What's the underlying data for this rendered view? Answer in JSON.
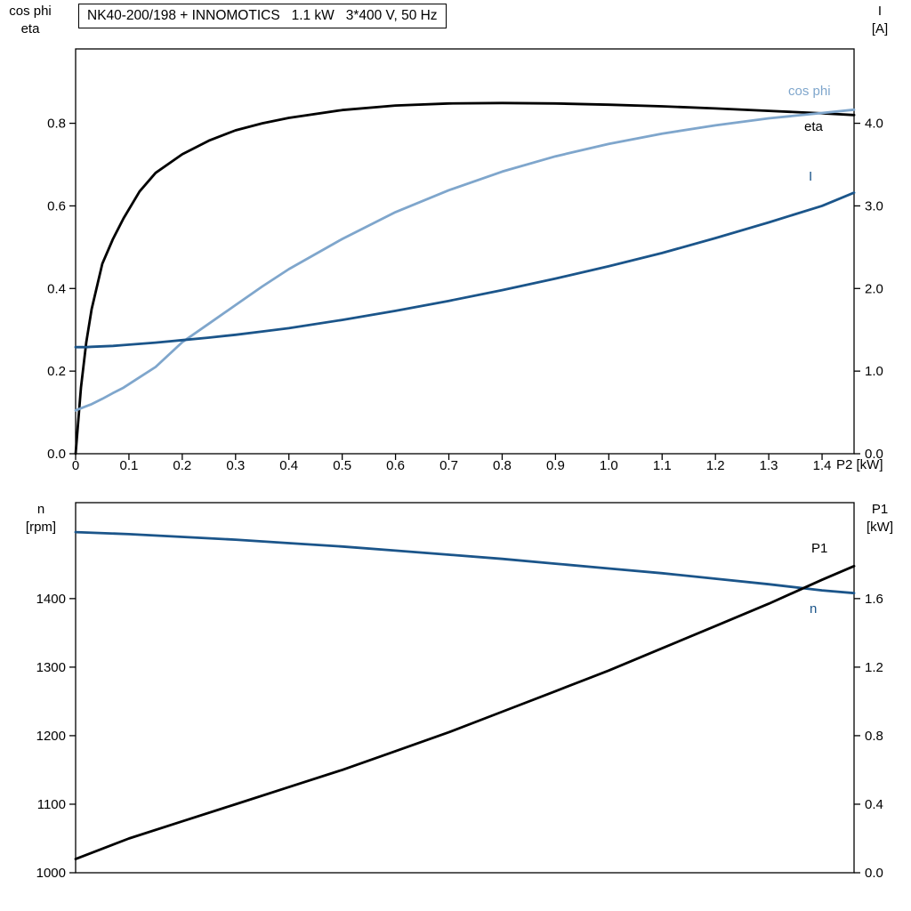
{
  "page": {
    "title_box": "NK40-200/198 + INNOMOTICS   1.1 kW   3*400 V, 50 Hz"
  },
  "colors": {
    "black": "#000000",
    "light_blue": "#7fa6cc",
    "dark_blue": "#1b558a",
    "frame": "#000000"
  },
  "axis_corner_labels": {
    "top_left_line1": "cos phi",
    "top_left_line2": "eta",
    "top_right_line1": "I",
    "top_right_line2": "[A]",
    "bottom_left_line1": "n",
    "bottom_left_line2": "[rpm]",
    "bottom_right_line1": "P1",
    "bottom_right_line2": "[kW]"
  },
  "x_axis_label": "P2 [kW]",
  "curve_labels": {
    "cos_phi": "cos phi",
    "eta": "eta",
    "current": "I",
    "p1": "P1",
    "n": "n"
  },
  "chart_data": [
    {
      "type": "line",
      "title": "Motor cos phi, efficiency and current vs shaft power P2",
      "xlabel": "P2 [kW]",
      "ylabel_left": "cos phi / eta",
      "ylabel_right": "I [A]",
      "x_range": [
        0,
        1.46
      ],
      "y_left_range": [
        0,
        0.98
      ],
      "y_right_range": [
        0,
        4.9
      ],
      "grid": false,
      "x_ticks": [
        "0",
        "0.1",
        "0.2",
        "0.3",
        "0.4",
        "0.5",
        "0.6",
        "0.7",
        "0.8",
        "0.9",
        "1.0",
        "1.1",
        "1.2",
        "1.3",
        "1.4"
      ],
      "y_left_ticks": [
        "0.0",
        "0.2",
        "0.4",
        "0.6",
        "0.8"
      ],
      "y_right_ticks": [
        "0.0",
        "1.0",
        "2.0",
        "3.0",
        "4.0"
      ],
      "x": [
        0,
        0.01,
        0.02,
        0.03,
        0.05,
        0.07,
        0.09,
        0.12,
        0.15,
        0.2,
        0.25,
        0.3,
        0.35,
        0.4,
        0.5,
        0.6,
        0.7,
        0.8,
        0.9,
        1.0,
        1.1,
        1.2,
        1.3,
        1.4,
        1.46
      ],
      "series": [
        {
          "name": "eta",
          "axis": "left",
          "color_key": "black",
          "width": 2.8,
          "values": [
            0,
            0.16,
            0.27,
            0.35,
            0.46,
            0.52,
            0.57,
            0.635,
            0.68,
            0.725,
            0.758,
            0.783,
            0.8,
            0.813,
            0.832,
            0.843,
            0.848,
            0.849,
            0.848,
            0.845,
            0.841,
            0.836,
            0.83,
            0.824,
            0.82
          ]
        },
        {
          "name": "cos phi",
          "axis": "left",
          "color_key": "light_blue",
          "width": 2.8,
          "values": [
            0.105,
            0.11,
            0.115,
            0.12,
            0.133,
            0.147,
            0.16,
            0.185,
            0.21,
            0.27,
            0.315,
            0.36,
            0.405,
            0.447,
            0.52,
            0.585,
            0.638,
            0.683,
            0.72,
            0.75,
            0.775,
            0.795,
            0.812,
            0.825,
            0.833
          ]
        },
        {
          "name": "I",
          "axis": "right",
          "color_key": "dark_blue",
          "width": 2.8,
          "values": [
            1.29,
            1.29,
            1.29,
            1.295,
            1.3,
            1.305,
            1.315,
            1.33,
            1.345,
            1.375,
            1.405,
            1.44,
            1.48,
            1.52,
            1.62,
            1.73,
            1.85,
            1.98,
            2.12,
            2.27,
            2.43,
            2.61,
            2.8,
            3.0,
            3.16
          ]
        }
      ]
    },
    {
      "type": "line",
      "title": "Motor speed n and input power P1 vs shaft power P2",
      "xlabel": "P2 [kW]",
      "ylabel_left": "n [rpm]",
      "ylabel_right": "P1 [kW]",
      "x_range": [
        0,
        1.46
      ],
      "y_left_range": [
        1000,
        1540
      ],
      "y_right_range": [
        0,
        2.16
      ],
      "grid": false,
      "x_ticks": [],
      "y_left_ticks": [
        "1000",
        "1100",
        "1200",
        "1300",
        "1400"
      ],
      "y_right_ticks": [
        "0.0",
        "0.4",
        "0.8",
        "1.2",
        "1.6"
      ],
      "x": [
        0,
        0.1,
        0.2,
        0.3,
        0.4,
        0.5,
        0.6,
        0.7,
        0.8,
        0.9,
        1.0,
        1.1,
        1.2,
        1.3,
        1.4,
        1.46
      ],
      "series": [
        {
          "name": "n",
          "axis": "left",
          "color_key": "dark_blue",
          "width": 2.8,
          "values": [
            1497,
            1494,
            1490,
            1486,
            1481,
            1476,
            1470,
            1464,
            1458,
            1451,
            1444,
            1437,
            1429,
            1421,
            1412,
            1408
          ]
        },
        {
          "name": "P1",
          "axis": "right",
          "color_key": "black",
          "width": 2.8,
          "values": [
            0.08,
            0.2,
            0.3,
            0.4,
            0.5,
            0.6,
            0.71,
            0.82,
            0.94,
            1.06,
            1.18,
            1.31,
            1.44,
            1.57,
            1.71,
            1.79
          ]
        }
      ]
    }
  ]
}
